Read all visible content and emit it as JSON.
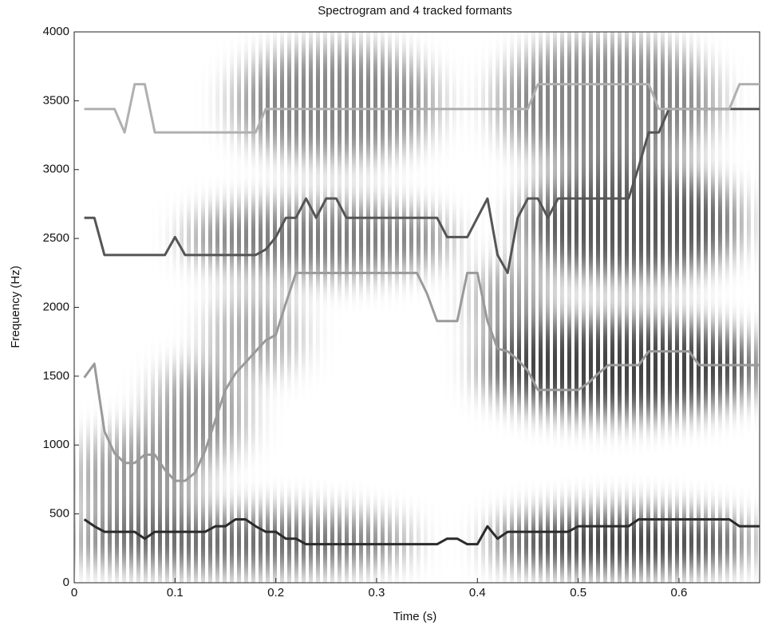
{
  "chart_data": {
    "type": "line",
    "title": "Spectrogram and 4 tracked formants",
    "x_label": "Time (s)",
    "y_label": "Frequency (Hz)",
    "x": [
      0.01,
      0.02,
      0.03,
      0.04,
      0.05,
      0.06,
      0.07,
      0.08,
      0.09,
      0.1,
      0.11,
      0.12,
      0.13,
      0.14,
      0.15,
      0.16,
      0.17,
      0.18,
      0.19,
      0.2,
      0.21,
      0.22,
      0.23,
      0.24,
      0.25,
      0.26,
      0.27,
      0.28,
      0.29,
      0.3,
      0.31,
      0.32,
      0.33,
      0.34,
      0.35,
      0.36,
      0.37,
      0.38,
      0.39,
      0.4,
      0.41,
      0.42,
      0.43,
      0.44,
      0.45,
      0.46,
      0.47,
      0.48,
      0.49,
      0.5,
      0.51,
      0.52,
      0.53,
      0.54,
      0.55,
      0.56,
      0.57,
      0.58,
      0.59,
      0.6,
      0.61,
      0.62,
      0.63,
      0.64,
      0.65,
      0.66,
      0.67,
      0.68
    ],
    "series": [
      {
        "color": "#2b2b2b",
        "values": [
          460,
          410,
          370,
          370,
          370,
          370,
          320,
          370,
          370,
          370,
          370,
          370,
          370,
          410,
          410,
          460,
          460,
          410,
          370,
          370,
          320,
          320,
          280,
          280,
          280,
          280,
          280,
          280,
          280,
          280,
          280,
          280,
          280,
          280,
          280,
          280,
          320,
          320,
          280,
          280,
          410,
          320,
          370,
          370,
          370,
          370,
          370,
          370,
          370,
          410,
          410,
          410,
          410,
          410,
          410,
          460,
          460,
          460,
          460,
          460,
          460,
          460,
          460,
          460,
          460,
          410,
          410,
          410
        ]
      },
      {
        "color": "#9a9a9a",
        "values": [
          1490,
          1590,
          1100,
          940,
          870,
          870,
          930,
          930,
          820,
          740,
          740,
          800,
          960,
          1180,
          1400,
          1520,
          1600,
          1680,
          1760,
          1800,
          2030,
          2250,
          2250,
          2250,
          2250,
          2250,
          2250,
          2250,
          2250,
          2250,
          2250,
          2250,
          2250,
          2250,
          2100,
          1900,
          1900,
          1900,
          2250,
          2250,
          1900,
          1700,
          1680,
          1620,
          1540,
          1400,
          1400,
          1400,
          1400,
          1400,
          1450,
          1520,
          1580,
          1580,
          1580,
          1580,
          1680,
          1680,
          1680,
          1680,
          1680,
          1580,
          1580,
          1580,
          1580,
          1580,
          1580,
          1580
        ]
      },
      {
        "color": "#555555",
        "values": [
          2650,
          2650,
          2380,
          2380,
          2380,
          2380,
          2380,
          2380,
          2380,
          2510,
          2380,
          2380,
          2380,
          2380,
          2380,
          2380,
          2380,
          2380,
          2420,
          2510,
          2650,
          2650,
          2790,
          2650,
          2790,
          2790,
          2650,
          2650,
          2650,
          2650,
          2650,
          2650,
          2650,
          2650,
          2650,
          2650,
          2510,
          2510,
          2510,
          2650,
          2790,
          2380,
          2250,
          2650,
          2790,
          2790,
          2650,
          2790,
          2790,
          2790,
          2790,
          2790,
          2790,
          2790,
          2790,
          3020,
          3270,
          3270,
          3440,
          3440,
          3440,
          3440,
          3440,
          3440,
          3440,
          3440,
          3440,
          3440
        ]
      },
      {
        "color": "#b0b0b0",
        "values": [
          3440,
          3440,
          3440,
          3440,
          3270,
          3620,
          3620,
          3270,
          3270,
          3270,
          3270,
          3270,
          3270,
          3270,
          3270,
          3270,
          3270,
          3270,
          3440,
          3440,
          3440,
          3440,
          3440,
          3440,
          3440,
          3440,
          3440,
          3440,
          3440,
          3440,
          3440,
          3440,
          3440,
          3440,
          3440,
          3440,
          3440,
          3440,
          3440,
          3440,
          3440,
          3440,
          3440,
          3440,
          3440,
          3620,
          3620,
          3620,
          3620,
          3620,
          3620,
          3620,
          3620,
          3620,
          3620,
          3620,
          3620,
          3440,
          3440,
          3440,
          3440,
          3440,
          3440,
          3440,
          3440,
          3620,
          3620,
          3620
        ]
      }
    ],
    "xlim": [
      0,
      0.68
    ],
    "xticks": [
      0,
      0.1,
      0.2,
      0.3,
      0.4,
      0.5,
      0.6
    ],
    "ylim": [
      0,
      4000
    ],
    "yticks": [
      0,
      500,
      1000,
      1500,
      2000,
      2500,
      3000,
      3500,
      4000
    ]
  }
}
